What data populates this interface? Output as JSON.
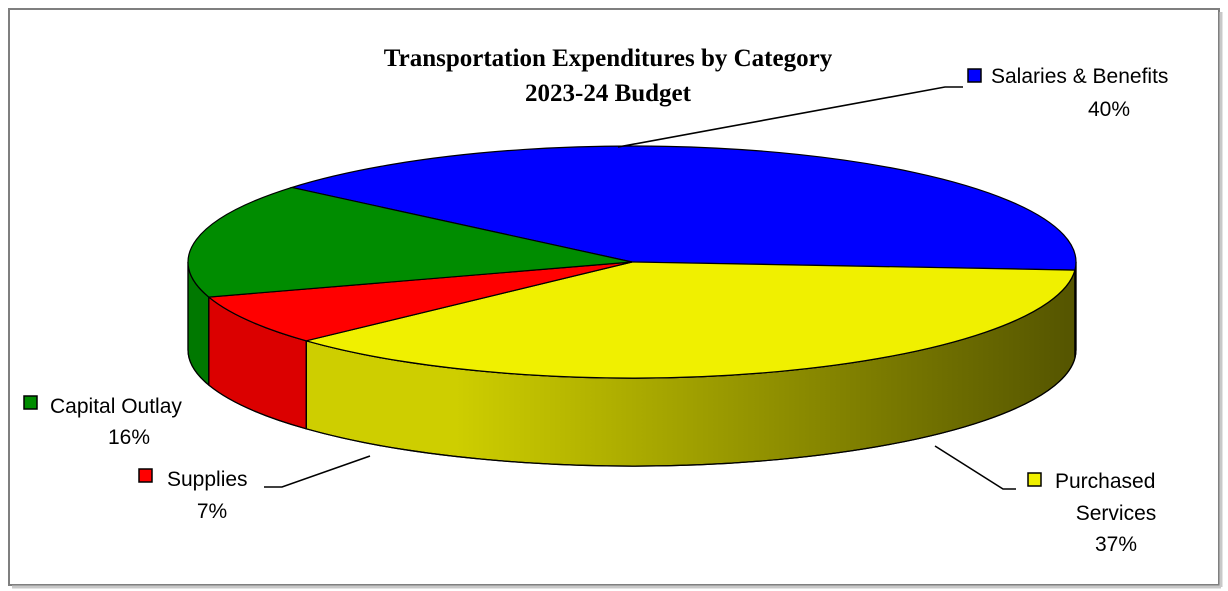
{
  "chart_data": {
    "type": "pie",
    "title": "Transportation Expenditures by Category",
    "subtitle": "2023-24 Budget",
    "slices": [
      {
        "label_lines": [
          "Salaries & Benefits"
        ],
        "value": 40,
        "value_label": "40%",
        "color": "#0000ff"
      },
      {
        "label_lines": [
          "Purchased",
          "Services"
        ],
        "value": 37,
        "value_label": "37%",
        "color": "#f0f000"
      },
      {
        "label_lines": [
          "Supplies"
        ],
        "value": 7,
        "value_label": "7%",
        "color": "#ff0000"
      },
      {
        "label_lines": [
          "Capital Outlay"
        ],
        "value": 16,
        "value_label": "16%",
        "color": "#008c00"
      }
    ]
  }
}
